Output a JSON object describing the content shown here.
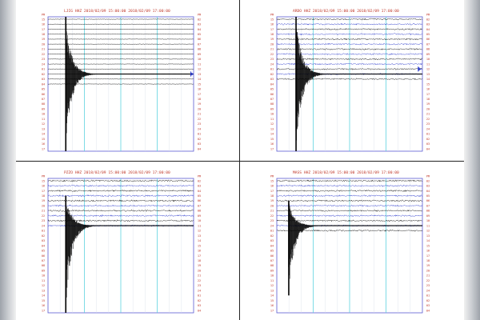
{
  "panels": [
    {
      "id": "ljig",
      "header": "LJIG HHZ  2018/02/09 15:00:00  2018/02/09 17:00:00",
      "left_top_label": "PM",
      "right_top_label": "PM",
      "left_labels": [
        "15",
        "16",
        "17",
        "18",
        "19",
        "20",
        "21",
        "22",
        "23",
        "24",
        "01",
        "02",
        "03",
        "04",
        "05",
        "06",
        "07",
        "08",
        "09",
        "10",
        "11",
        "12",
        "13",
        "14",
        "15",
        "16",
        "17"
      ],
      "right_labels": [
        "02",
        "03",
        "04",
        "05",
        "06",
        "07",
        "08",
        "09",
        "10",
        "11",
        "12",
        "13",
        "14",
        "15",
        "16",
        "17",
        "18",
        "19",
        "20",
        "21",
        "22",
        "23",
        "24",
        "01",
        "02",
        "03",
        "04"
      ],
      "trace_colors": [
        "#000000",
        "#000000",
        "#000000",
        "#000000",
        "#000000",
        "#000000",
        "#000000",
        "#000000",
        "#000000",
        "#000000",
        "#000000",
        "#000000",
        "#000000",
        "#000000",
        "#000000",
        "#000000",
        "#000000",
        "#000000",
        "#000000",
        "#000000",
        "#000000",
        "#000000",
        "#000000",
        "#000000",
        "#000000",
        "#000000",
        "#000000"
      ],
      "trace_span": 14,
      "event_row": 11,
      "event_x": 0.12,
      "event_up": 12,
      "event_down": 27,
      "noise": 0.4,
      "blip": {
        "row": 11,
        "x": 0.98,
        "color": "#2030c8"
      }
    },
    {
      "id": "ardo",
      "header": "ARDO HHZ  2018/02/09 15:00:00  2018/02/09 17:00:00",
      "left_top_label": "PM",
      "right_top_label": "PM",
      "left_labels": [
        "15",
        "16",
        "17",
        "18",
        "19",
        "20",
        "21",
        "22",
        "23",
        "24",
        "01",
        "02",
        "03",
        "04",
        "05",
        "06",
        "07",
        "08",
        "09",
        "10",
        "11",
        "12",
        "13",
        "14",
        "15",
        "16",
        "17"
      ],
      "right_labels": [
        "02",
        "03",
        "04",
        "05",
        "06",
        "07",
        "08",
        "09",
        "10",
        "11",
        "12",
        "13",
        "14",
        "15",
        "16",
        "17",
        "18",
        "19",
        "20",
        "21",
        "22",
        "23",
        "24",
        "01",
        "02",
        "03",
        "04"
      ],
      "trace_colors": [
        "#000000",
        "#2030c8",
        "#000000",
        "#2030c8",
        "#000000",
        "#2030c8",
        "#000000",
        "#2030c8",
        "#000000",
        "#2030c8",
        "#000000",
        "#2030c8",
        "#000000",
        "#2030c8",
        "#000000",
        "#2030c8",
        "#000000",
        "#2030c8",
        "#000000",
        "#2030c8",
        "#000000",
        "#2030c8",
        "#000000",
        "#2030c8",
        "#000000",
        "#2030c8",
        "#000000"
      ],
      "trace_span": 13,
      "event_row": 11,
      "event_x": 0.13,
      "event_up": 13,
      "event_down": 19,
      "noise": 1.4,
      "blip": {
        "row": 10,
        "x": 0.97,
        "color": "#2030c8"
      }
    },
    {
      "id": "pzzo",
      "header": "PZZO HHZ  2018/02/09 15:00:00  2018/02/09 17:00:00",
      "left_top_label": "PM",
      "right_top_label": "PM",
      "left_labels": [
        "15",
        "16",
        "17",
        "18",
        "19",
        "20",
        "21",
        "22",
        "23",
        "24",
        "01",
        "02",
        "03",
        "04",
        "05",
        "06",
        "07",
        "08",
        "09",
        "10",
        "11",
        "12",
        "13",
        "14",
        "15",
        "16",
        "17"
      ],
      "right_labels": [
        "02",
        "03",
        "04",
        "05",
        "06",
        "07",
        "08",
        "09",
        "10",
        "11",
        "12",
        "13",
        "14",
        "15",
        "16",
        "17",
        "18",
        "19",
        "20",
        "21",
        "22",
        "23",
        "24",
        "01",
        "02",
        "03",
        "04"
      ],
      "trace_colors": [
        "#000000",
        "#2030c8",
        "#000000",
        "#2030c8",
        "#000000",
        "#2030c8",
        "#000000",
        "#2030c8",
        "#000000",
        "#2030c8",
        "#000000",
        "#2030c8",
        "#000000",
        "#2030c8",
        "#000000",
        "#2030c8",
        "#000000",
        "#2030c8",
        "#000000",
        "#2030c8",
        "#000000",
        "#2030c8",
        "#000000",
        "#2030c8",
        "#000000",
        "#2030c8",
        "#000000"
      ],
      "trace_span": 10,
      "event_row": 9,
      "event_x": 0.12,
      "event_up": 6,
      "event_down": 18,
      "noise": 1.5,
      "blip": null
    },
    {
      "id": "mass",
      "header": "MASS HHZ  2018/02/09 15:00:00  2018/02/09 17:00:00",
      "left_top_label": "PM",
      "right_top_label": "PM",
      "left_labels": [
        "15",
        "16",
        "17",
        "18",
        "19",
        "20",
        "21",
        "22",
        "23",
        "24",
        "01",
        "02",
        "03",
        "04",
        "05",
        "06",
        "07",
        "08",
        "09",
        "10",
        "11",
        "12",
        "13",
        "14",
        "15",
        "16",
        "17"
      ],
      "right_labels": [
        "02",
        "03",
        "04",
        "05",
        "06",
        "07",
        "08",
        "09",
        "10",
        "11",
        "12",
        "13",
        "14",
        "15",
        "16",
        "17",
        "18",
        "19",
        "20",
        "21",
        "22",
        "23",
        "24",
        "01",
        "02",
        "03",
        "04"
      ],
      "trace_colors": [
        "#000000",
        "#2030c8",
        "#000000",
        "#2030c8",
        "#000000",
        "#2030c8",
        "#000000",
        "#2030c8",
        "#000000",
        "#2030c8",
        "#000000",
        "#2030c8",
        "#000000",
        "#2030c8",
        "#000000",
        "#2030c8",
        "#000000",
        "#2030c8",
        "#000000",
        "#2030c8",
        "#000000",
        "#2030c8",
        "#000000",
        "#2030c8",
        "#000000",
        "#2030c8",
        "#000000"
      ],
      "trace_span": 11,
      "event_row": 9,
      "event_x": 0.08,
      "event_up": 5,
      "event_down": 14,
      "noise": 1.4,
      "blip": null
    }
  ],
  "colors": {
    "frame": "#5a5ad2",
    "label": "#c0392b",
    "minute_line": "#5fd3e0",
    "sub_line": "#d9dde8",
    "trace_black": "#000000",
    "trace_blue": "#2030c8"
  }
}
